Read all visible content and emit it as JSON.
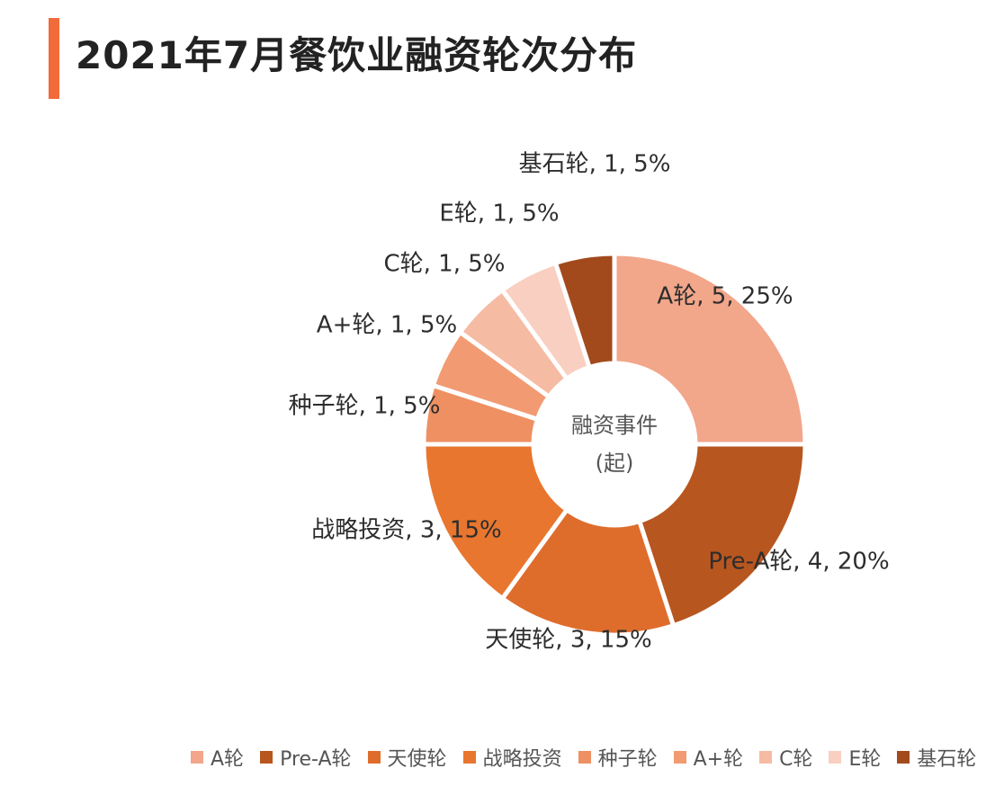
{
  "title": "2021年7月餐饮业融资轮次分布",
  "chart_data": {
    "type": "pie",
    "variant": "donut",
    "center_label": [
      "融资事件",
      "(起)"
    ],
    "legend_position": "bottom",
    "slices": [
      {
        "name": "A轮",
        "value": 5,
        "percent": "25%",
        "color": "#f2a68a",
        "label": "A轮, 5, 25%"
      },
      {
        "name": "Pre-A轮",
        "value": 4,
        "percent": "20%",
        "color": "#b8561f",
        "label": "Pre-A轮, 4, 20%"
      },
      {
        "name": "天使轮",
        "value": 3,
        "percent": "15%",
        "color": "#de6d2c",
        "label": "天使轮, 3, 15%"
      },
      {
        "name": "战略投资",
        "value": 3,
        "percent": "15%",
        "color": "#e8762e",
        "label": "战略投资, 3, 15%"
      },
      {
        "name": "种子轮",
        "value": 1,
        "percent": "5%",
        "color": "#ee9062",
        "label": "种子轮, 1, 5%"
      },
      {
        "name": "A+轮",
        "value": 1,
        "percent": "5%",
        "color": "#f29a72",
        "label": "A+轮, 1, 5%"
      },
      {
        "name": "C轮",
        "value": 1,
        "percent": "5%",
        "color": "#f6bba3",
        "label": "C轮, 1, 5%"
      },
      {
        "name": "E轮",
        "value": 1,
        "percent": "5%",
        "color": "#f8cfc0",
        "label": "E轮, 1, 5%"
      },
      {
        "name": "基石轮",
        "value": 1,
        "percent": "5%",
        "color": "#a24a1c",
        "label": "基石轮, 1, 5%"
      }
    ]
  }
}
